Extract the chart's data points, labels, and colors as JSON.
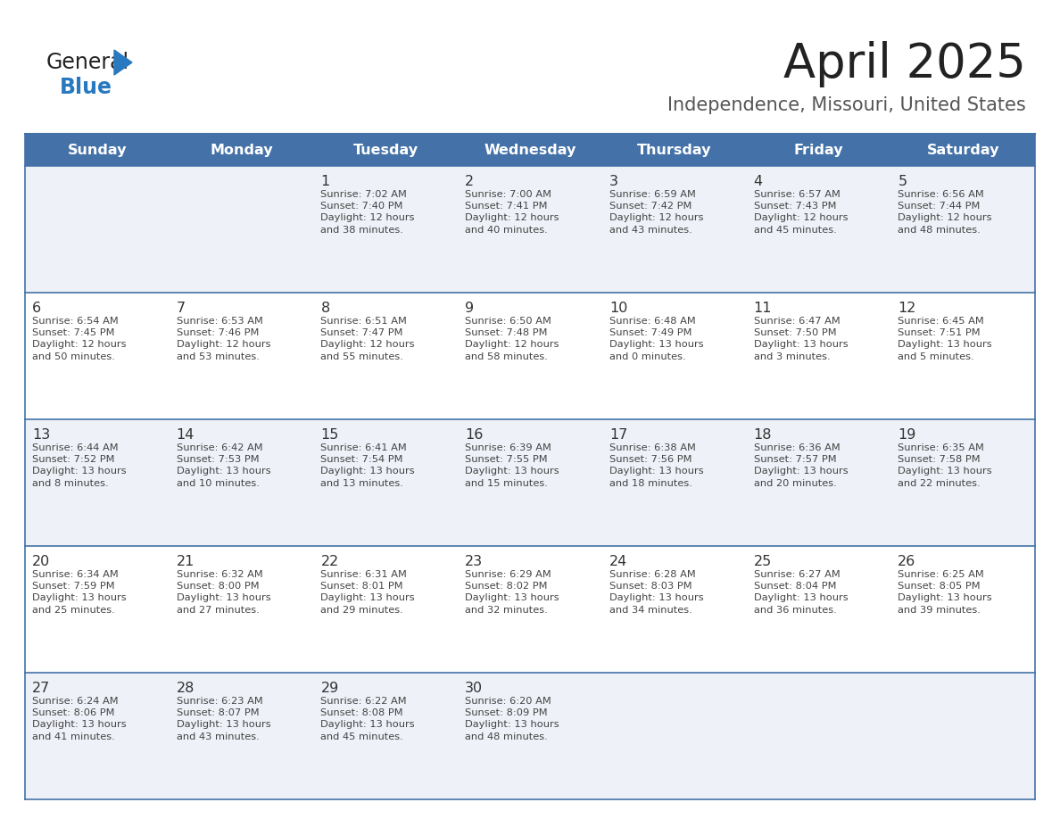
{
  "title": "April 2025",
  "subtitle": "Independence, Missouri, United States",
  "header_bg_color": "#4472a8",
  "header_text_color": "#ffffff",
  "row_bg_even": "#eef1f7",
  "row_bg_odd": "#ffffff",
  "border_color": "#4472a8",
  "day_number_color": "#333333",
  "cell_text_color": "#444444",
  "days_of_week": [
    "Sunday",
    "Monday",
    "Tuesday",
    "Wednesday",
    "Thursday",
    "Friday",
    "Saturday"
  ],
  "weeks": [
    [
      {
        "day": "",
        "sunrise": "",
        "sunset": "",
        "daylight": ""
      },
      {
        "day": "",
        "sunrise": "",
        "sunset": "",
        "daylight": ""
      },
      {
        "day": "1",
        "sunrise": "Sunrise: 7:02 AM",
        "sunset": "Sunset: 7:40 PM",
        "daylight": "Daylight: 12 hours\nand 38 minutes."
      },
      {
        "day": "2",
        "sunrise": "Sunrise: 7:00 AM",
        "sunset": "Sunset: 7:41 PM",
        "daylight": "Daylight: 12 hours\nand 40 minutes."
      },
      {
        "day": "3",
        "sunrise": "Sunrise: 6:59 AM",
        "sunset": "Sunset: 7:42 PM",
        "daylight": "Daylight: 12 hours\nand 43 minutes."
      },
      {
        "day": "4",
        "sunrise": "Sunrise: 6:57 AM",
        "sunset": "Sunset: 7:43 PM",
        "daylight": "Daylight: 12 hours\nand 45 minutes."
      },
      {
        "day": "5",
        "sunrise": "Sunrise: 6:56 AM",
        "sunset": "Sunset: 7:44 PM",
        "daylight": "Daylight: 12 hours\nand 48 minutes."
      }
    ],
    [
      {
        "day": "6",
        "sunrise": "Sunrise: 6:54 AM",
        "sunset": "Sunset: 7:45 PM",
        "daylight": "Daylight: 12 hours\nand 50 minutes."
      },
      {
        "day": "7",
        "sunrise": "Sunrise: 6:53 AM",
        "sunset": "Sunset: 7:46 PM",
        "daylight": "Daylight: 12 hours\nand 53 minutes."
      },
      {
        "day": "8",
        "sunrise": "Sunrise: 6:51 AM",
        "sunset": "Sunset: 7:47 PM",
        "daylight": "Daylight: 12 hours\nand 55 minutes."
      },
      {
        "day": "9",
        "sunrise": "Sunrise: 6:50 AM",
        "sunset": "Sunset: 7:48 PM",
        "daylight": "Daylight: 12 hours\nand 58 minutes."
      },
      {
        "day": "10",
        "sunrise": "Sunrise: 6:48 AM",
        "sunset": "Sunset: 7:49 PM",
        "daylight": "Daylight: 13 hours\nand 0 minutes."
      },
      {
        "day": "11",
        "sunrise": "Sunrise: 6:47 AM",
        "sunset": "Sunset: 7:50 PM",
        "daylight": "Daylight: 13 hours\nand 3 minutes."
      },
      {
        "day": "12",
        "sunrise": "Sunrise: 6:45 AM",
        "sunset": "Sunset: 7:51 PM",
        "daylight": "Daylight: 13 hours\nand 5 minutes."
      }
    ],
    [
      {
        "day": "13",
        "sunrise": "Sunrise: 6:44 AM",
        "sunset": "Sunset: 7:52 PM",
        "daylight": "Daylight: 13 hours\nand 8 minutes."
      },
      {
        "day": "14",
        "sunrise": "Sunrise: 6:42 AM",
        "sunset": "Sunset: 7:53 PM",
        "daylight": "Daylight: 13 hours\nand 10 minutes."
      },
      {
        "day": "15",
        "sunrise": "Sunrise: 6:41 AM",
        "sunset": "Sunset: 7:54 PM",
        "daylight": "Daylight: 13 hours\nand 13 minutes."
      },
      {
        "day": "16",
        "sunrise": "Sunrise: 6:39 AM",
        "sunset": "Sunset: 7:55 PM",
        "daylight": "Daylight: 13 hours\nand 15 minutes."
      },
      {
        "day": "17",
        "sunrise": "Sunrise: 6:38 AM",
        "sunset": "Sunset: 7:56 PM",
        "daylight": "Daylight: 13 hours\nand 18 minutes."
      },
      {
        "day": "18",
        "sunrise": "Sunrise: 6:36 AM",
        "sunset": "Sunset: 7:57 PM",
        "daylight": "Daylight: 13 hours\nand 20 minutes."
      },
      {
        "day": "19",
        "sunrise": "Sunrise: 6:35 AM",
        "sunset": "Sunset: 7:58 PM",
        "daylight": "Daylight: 13 hours\nand 22 minutes."
      }
    ],
    [
      {
        "day": "20",
        "sunrise": "Sunrise: 6:34 AM",
        "sunset": "Sunset: 7:59 PM",
        "daylight": "Daylight: 13 hours\nand 25 minutes."
      },
      {
        "day": "21",
        "sunrise": "Sunrise: 6:32 AM",
        "sunset": "Sunset: 8:00 PM",
        "daylight": "Daylight: 13 hours\nand 27 minutes."
      },
      {
        "day": "22",
        "sunrise": "Sunrise: 6:31 AM",
        "sunset": "Sunset: 8:01 PM",
        "daylight": "Daylight: 13 hours\nand 29 minutes."
      },
      {
        "day": "23",
        "sunrise": "Sunrise: 6:29 AM",
        "sunset": "Sunset: 8:02 PM",
        "daylight": "Daylight: 13 hours\nand 32 minutes."
      },
      {
        "day": "24",
        "sunrise": "Sunrise: 6:28 AM",
        "sunset": "Sunset: 8:03 PM",
        "daylight": "Daylight: 13 hours\nand 34 minutes."
      },
      {
        "day": "25",
        "sunrise": "Sunrise: 6:27 AM",
        "sunset": "Sunset: 8:04 PM",
        "daylight": "Daylight: 13 hours\nand 36 minutes."
      },
      {
        "day": "26",
        "sunrise": "Sunrise: 6:25 AM",
        "sunset": "Sunset: 8:05 PM",
        "daylight": "Daylight: 13 hours\nand 39 minutes."
      }
    ],
    [
      {
        "day": "27",
        "sunrise": "Sunrise: 6:24 AM",
        "sunset": "Sunset: 8:06 PM",
        "daylight": "Daylight: 13 hours\nand 41 minutes."
      },
      {
        "day": "28",
        "sunrise": "Sunrise: 6:23 AM",
        "sunset": "Sunset: 8:07 PM",
        "daylight": "Daylight: 13 hours\nand 43 minutes."
      },
      {
        "day": "29",
        "sunrise": "Sunrise: 6:22 AM",
        "sunset": "Sunset: 8:08 PM",
        "daylight": "Daylight: 13 hours\nand 45 minutes."
      },
      {
        "day": "30",
        "sunrise": "Sunrise: 6:20 AM",
        "sunset": "Sunset: 8:09 PM",
        "daylight": "Daylight: 13 hours\nand 48 minutes."
      },
      {
        "day": "",
        "sunrise": "",
        "sunset": "",
        "daylight": ""
      },
      {
        "day": "",
        "sunrise": "",
        "sunset": "",
        "daylight": ""
      },
      {
        "day": "",
        "sunrise": "",
        "sunset": "",
        "daylight": ""
      }
    ]
  ],
  "logo_general_color": "#222222",
  "logo_blue_color": "#2979c0",
  "title_color": "#222222",
  "subtitle_color": "#555555",
  "fig_width": 11.88,
  "fig_height": 9.18,
  "dpi": 100
}
